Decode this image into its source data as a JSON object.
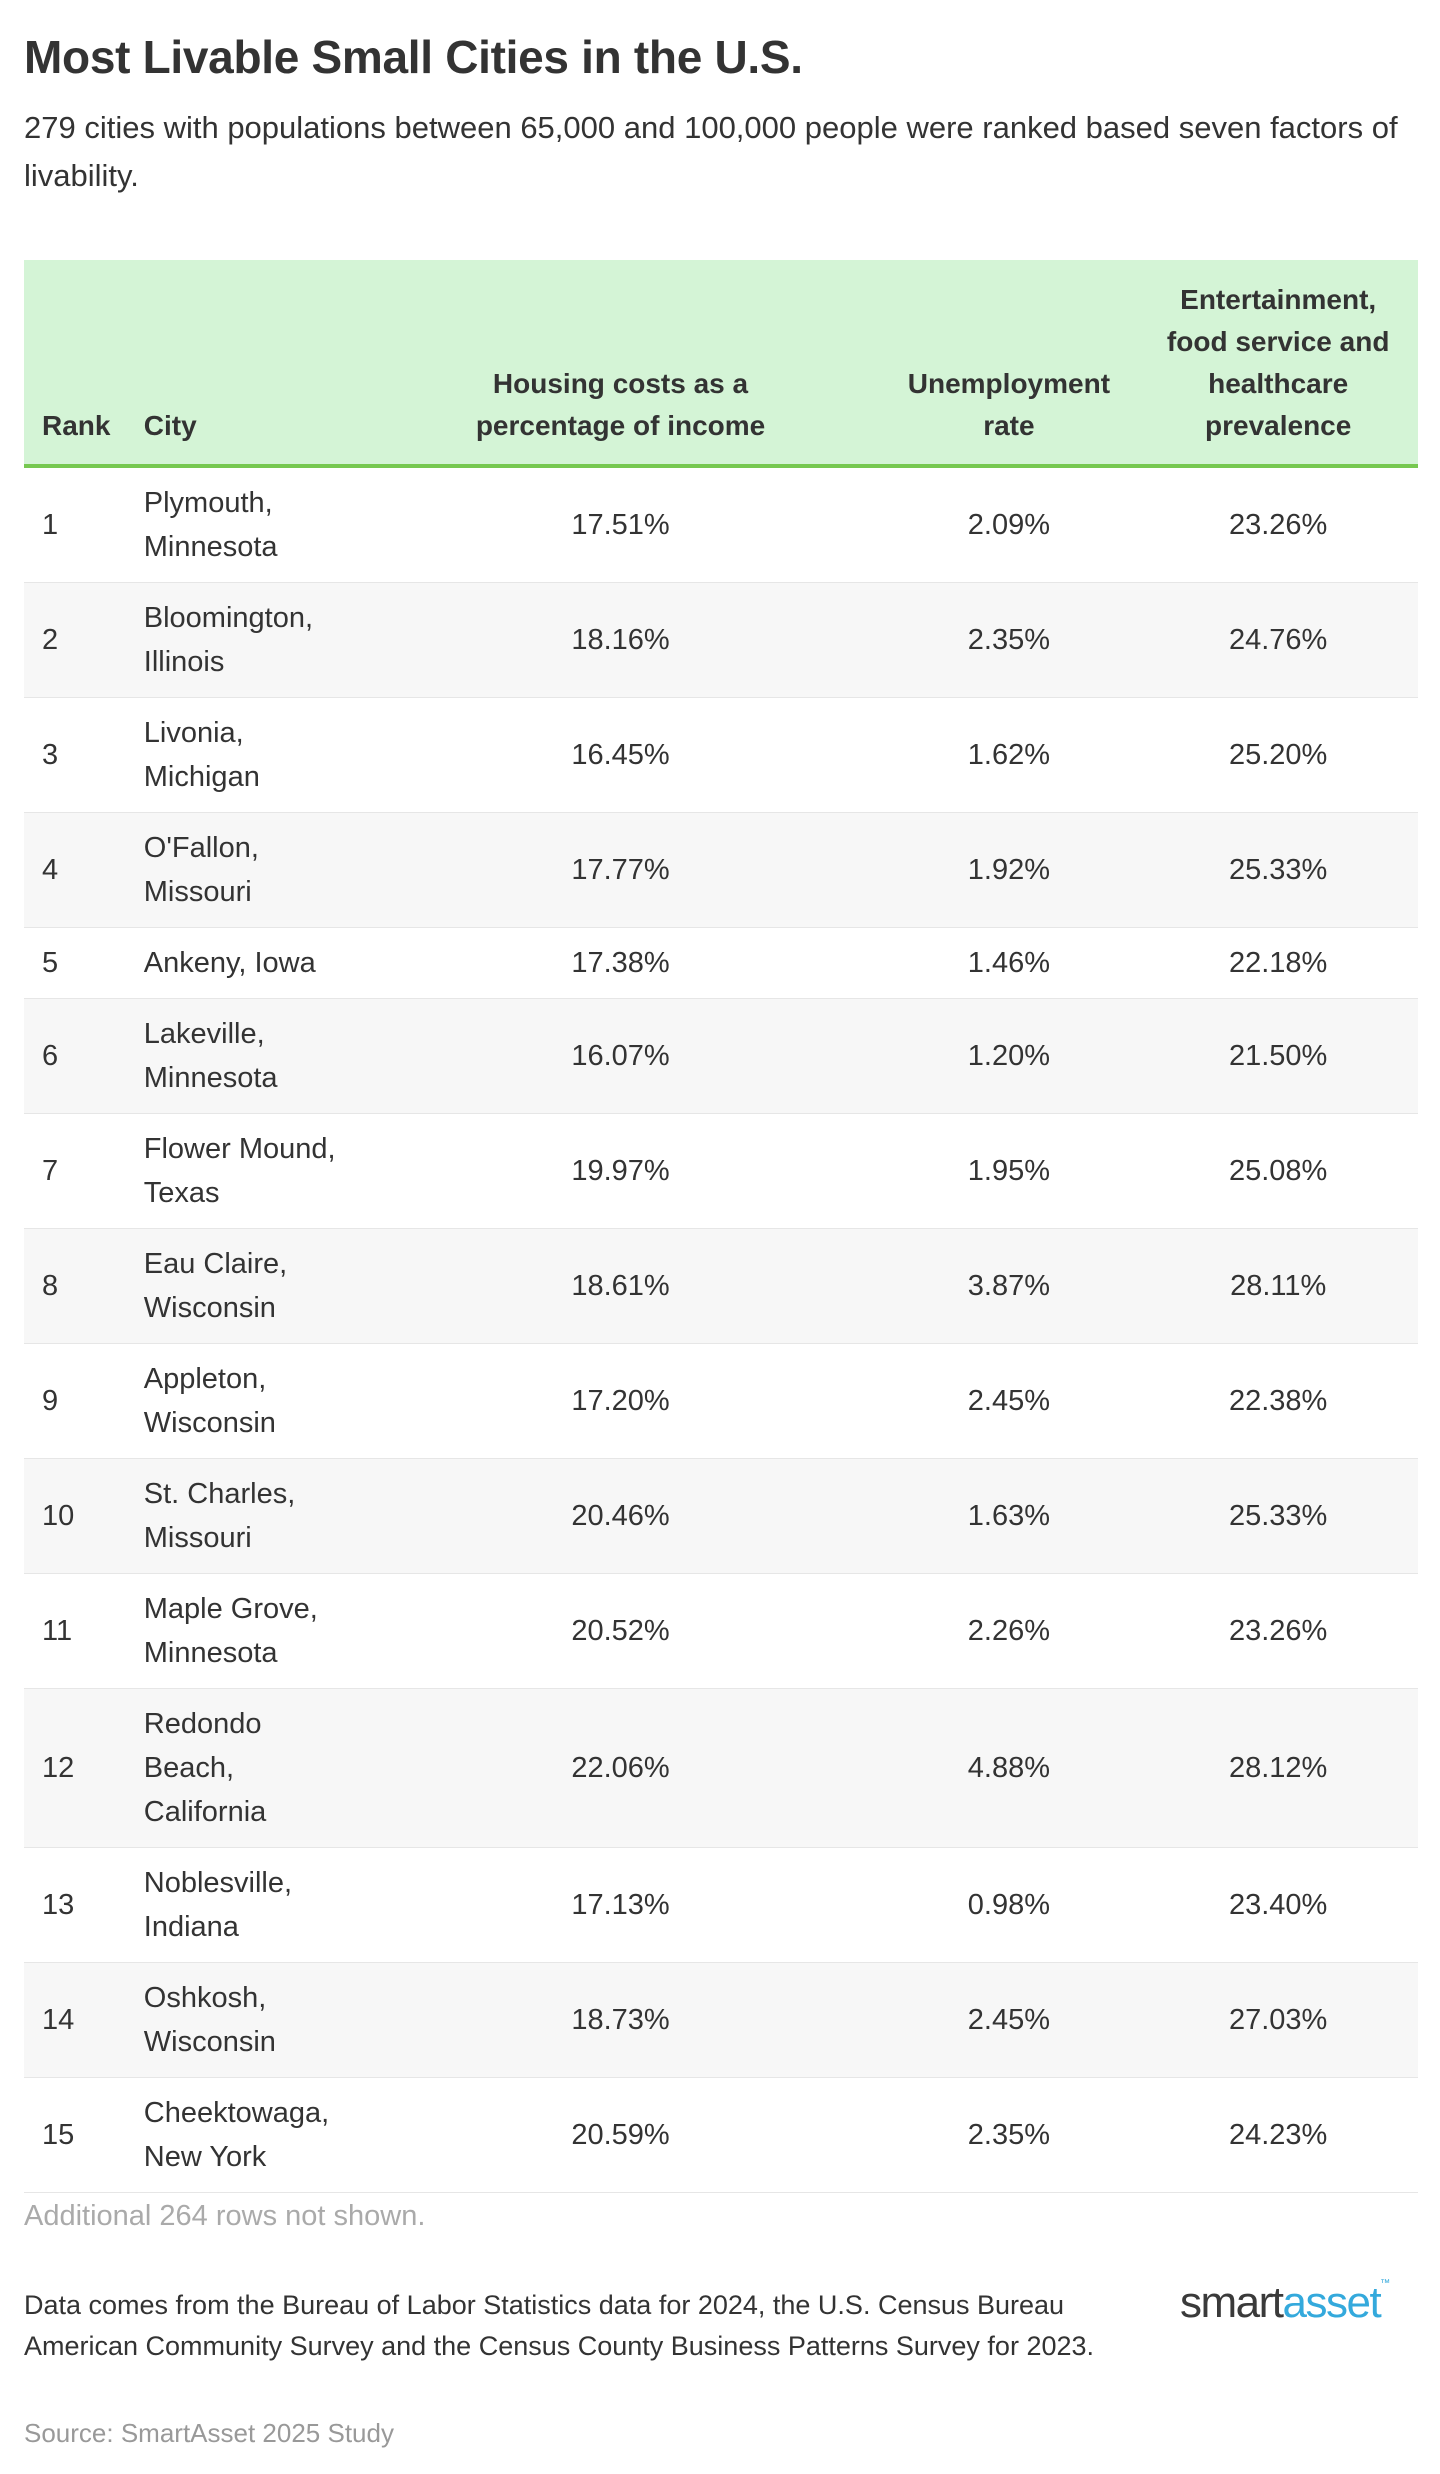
{
  "title": "Most Livable Small Cities in the U.S.",
  "subtitle": "279 cities with populations between 65,000 and 100,000 people were ranked based seven factors of livability.",
  "colors": {
    "header_bg": "#d4f4d6",
    "header_border": "#76c850",
    "logo_dark": "#3a3a3a",
    "logo_blue": "#34a9dc"
  },
  "table": {
    "headers": [
      "Rank",
      "City",
      "Housing costs as a percentage of income",
      "Unemployment rate",
      "Entertainment, food service and healthcare prevalence"
    ],
    "rows": [
      [
        "1",
        "Plymouth, Minnesota",
        "17.51%",
        "2.09%",
        "23.26%"
      ],
      [
        "2",
        "Bloomington, Illinois",
        "18.16%",
        "2.35%",
        "24.76%"
      ],
      [
        "3",
        "Livonia, Michigan",
        "16.45%",
        "1.62%",
        "25.20%"
      ],
      [
        "4",
        "O'Fallon, Missouri",
        "17.77%",
        "1.92%",
        "25.33%"
      ],
      [
        "5",
        "Ankeny, Iowa",
        "17.38%",
        "1.46%",
        "22.18%"
      ],
      [
        "6",
        "Lakeville, Minnesota",
        "16.07%",
        "1.20%",
        "21.50%"
      ],
      [
        "7",
        "Flower Mound, Texas",
        "19.97%",
        "1.95%",
        "25.08%"
      ],
      [
        "8",
        "Eau Claire, Wisconsin",
        "18.61%",
        "3.87%",
        "28.11%"
      ],
      [
        "9",
        "Appleton, Wisconsin",
        "17.20%",
        "2.45%",
        "22.38%"
      ],
      [
        "10",
        "St. Charles, Missouri",
        "20.46%",
        "1.63%",
        "25.33%"
      ],
      [
        "11",
        "Maple Grove, Minnesota",
        "20.52%",
        "2.26%",
        "23.26%"
      ],
      [
        "12",
        "Redondo Beach, California",
        "22.06%",
        "4.88%",
        "28.12%"
      ],
      [
        "13",
        "Noblesville, Indiana",
        "17.13%",
        "0.98%",
        "23.40%"
      ],
      [
        "14",
        "Oshkosh, Wisconsin",
        "18.73%",
        "2.45%",
        "27.03%"
      ],
      [
        "15",
        "Cheektowaga, New York",
        "20.59%",
        "2.35%",
        "24.23%"
      ]
    ]
  },
  "more_rows": "Additional 264 rows not shown.",
  "notes": "Data comes from the Bureau of Labor Statistics data for 2024, the U.S. Census Bureau American Community Survey and the Census County Business Patterns Survey for 2023.",
  "source": "Source: SmartAsset 2025 Study",
  "logo": {
    "part1": "smart",
    "part2": "asset",
    "tm": "™"
  }
}
